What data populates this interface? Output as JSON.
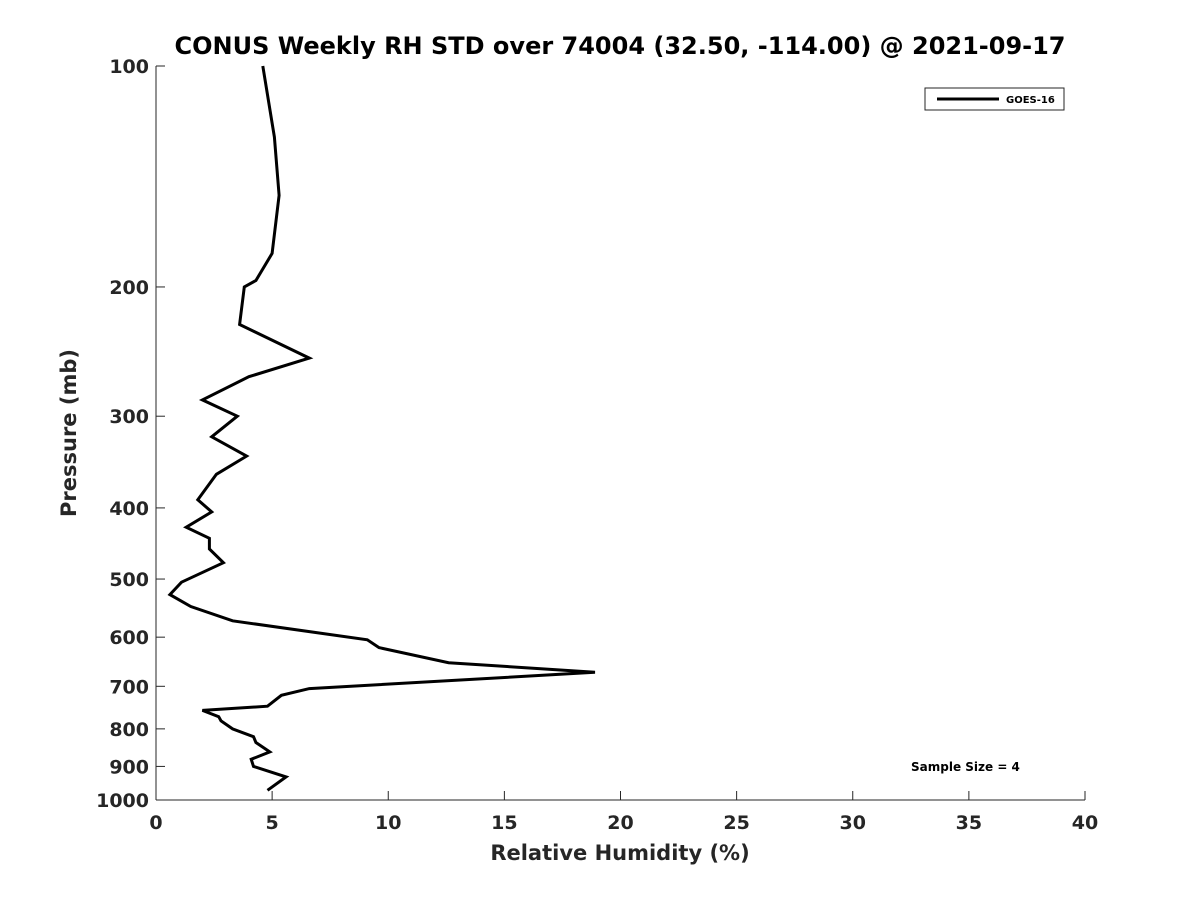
{
  "chart_data": {
    "type": "line",
    "title": "CONUS Weekly RH STD over 74004 (32.50, -114.00) @ 2021-09-17",
    "xlabel": "Relative Humidity (%)",
    "ylabel": "Pressure (mb)",
    "xlim": [
      0,
      40
    ],
    "ylim": [
      100,
      1000
    ],
    "y_scale": "log",
    "y_reversed": true,
    "grid": false,
    "legend_position": "top-right",
    "x_ticks": [
      0,
      5,
      10,
      15,
      20,
      25,
      30,
      35,
      40
    ],
    "y_ticks": [
      100,
      200,
      300,
      400,
      500,
      600,
      700,
      800,
      900,
      1000
    ],
    "series": [
      {
        "name": "GOES-16",
        "color": "#000000",
        "x": [
          4.6,
          5.1,
          5.3,
          5.0,
          4.3,
          3.8,
          3.6,
          6.6,
          4.0,
          2.0,
          3.5,
          2.4,
          3.9,
          2.6,
          1.8,
          2.4,
          1.3,
          2.3,
          2.3,
          2.9,
          1.1,
          0.6,
          1.5,
          3.3,
          9.1,
          9.6,
          12.6,
          18.9,
          6.6,
          5.4,
          4.8,
          2.0,
          2.7,
          2.8,
          3.3,
          4.2,
          4.3,
          4.9,
          4.1,
          4.2,
          5.6,
          4.8
        ],
        "y": [
          100,
          125,
          150,
          180,
          196,
          200,
          225,
          250,
          265,
          285,
          300,
          320,
          340,
          360,
          390,
          405,
          425,
          440,
          455,
          475,
          505,
          525,
          545,
          570,
          605,
          620,
          650,
          670,
          705,
          720,
          745,
          755,
          770,
          780,
          800,
          820,
          835,
          860,
          880,
          900,
          930,
          970
        ]
      }
    ],
    "annotations": [
      "Sample Size = 4"
    ]
  }
}
